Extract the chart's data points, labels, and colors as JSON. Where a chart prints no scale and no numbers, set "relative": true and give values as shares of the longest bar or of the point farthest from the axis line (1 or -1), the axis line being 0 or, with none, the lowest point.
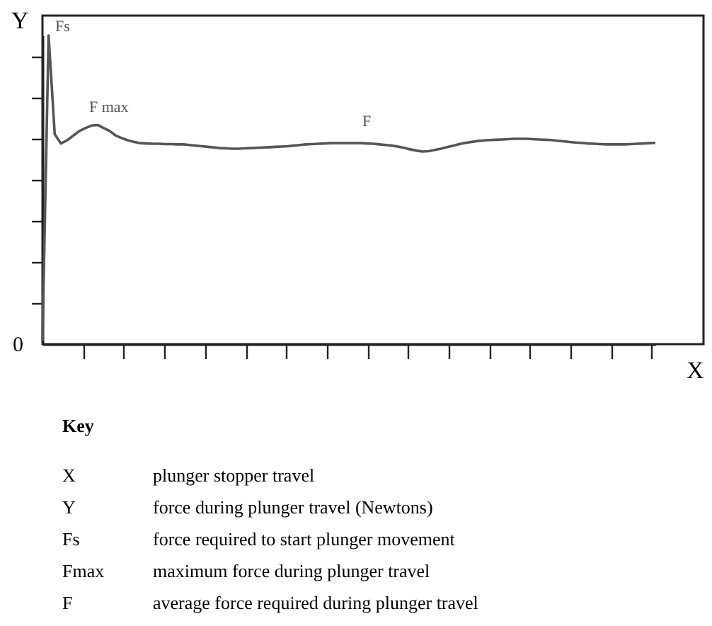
{
  "chart_data": {
    "type": "line",
    "relative": true,
    "xlabel": "X",
    "ylabel": "Y",
    "categories": [
      null,
      null,
      null,
      null,
      null,
      null,
      null,
      null,
      null,
      null,
      null,
      null,
      null,
      null,
      null,
      null,
      null,
      null,
      null,
      null,
      null,
      null,
      null,
      null,
      null,
      null,
      null,
      null,
      null,
      null,
      null,
      null,
      null,
      null,
      null,
      null,
      null,
      null,
      null,
      null,
      null,
      null,
      null,
      null,
      null,
      null,
      null,
      null,
      null,
      null,
      null,
      null,
      null,
      null,
      null,
      null,
      null,
      null,
      null,
      null,
      null,
      null,
      null,
      null,
      null,
      null,
      null,
      null,
      null,
      null,
      null,
      null,
      null,
      null,
      null,
      null,
      null,
      null,
      null,
      null,
      null,
      null,
      null,
      null,
      null,
      null,
      null,
      null,
      null,
      null,
      null,
      null,
      null,
      null,
      null,
      null,
      null,
      null,
      null,
      null,
      null
    ],
    "series": [
      {
        "color": "#555555",
        "values": [
          0.01,
          1,
          0.68,
          0.65,
          0.66,
          0.675,
          0.69,
          0.7,
          0.708,
          0.71,
          0.7,
          0.69,
          0.675,
          0.667,
          0.66,
          0.655,
          0.651,
          0.65,
          0.649,
          0.649,
          0.648,
          0.648,
          0.647,
          0.647,
          0.645,
          0.643,
          0.641,
          0.639,
          0.637,
          0.635,
          0.634,
          0.633,
          0.633,
          0.634,
          0.635,
          0.636,
          0.637,
          0.638,
          0.639,
          0.64,
          0.641,
          0.643,
          0.645,
          0.647,
          0.648,
          0.649,
          0.65,
          0.651,
          0.651,
          0.651,
          0.651,
          0.651,
          0.651,
          0.65,
          0.649,
          0.647,
          0.645,
          0.643,
          0.64,
          0.636,
          0.631,
          0.627,
          0.624,
          0.625,
          0.629,
          0.633,
          0.638,
          0.643,
          0.648,
          0.652,
          0.655,
          0.658,
          0.66,
          0.661,
          0.662,
          0.663,
          0.664,
          0.665,
          0.665,
          0.665,
          0.664,
          0.663,
          0.662,
          0.661,
          0.659,
          0.657,
          0.655,
          0.653,
          0.652,
          0.65,
          0.649,
          0.648,
          0.647,
          0.647,
          0.647,
          0.647,
          0.648,
          0.649,
          0.65,
          0.651,
          0.652
        ]
      }
    ],
    "marker": "none",
    "line_style": "solid",
    "grid": false,
    "annotations": [
      "Fs",
      "F max",
      "F",
      "0",
      "Key",
      "X",
      "plunger stopper travel",
      "Y",
      "force during plunger travel (Newtons)",
      "Fs",
      "force required to start plunger movement",
      "Fmax",
      "maximum force during plunger travel",
      "F",
      "average force required during plunger travel"
    ]
  }
}
